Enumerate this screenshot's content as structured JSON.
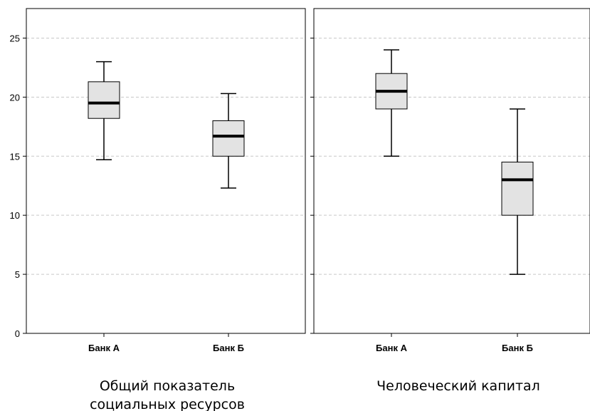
{
  "chart_data": [
    {
      "type": "box",
      "title_lines": [
        "Общий показатель",
        "социальных ресурсов"
      ],
      "categories": [
        "Банк А",
        "Банк Б"
      ],
      "boxes": [
        {
          "category": "Банк А",
          "min": 14.7,
          "q1": 18.2,
          "median": 19.5,
          "q3": 21.3,
          "max": 23.0
        },
        {
          "category": "Банк Б",
          "min": 12.3,
          "q1": 15.0,
          "median": 16.7,
          "q3": 18.0,
          "max": 20.3
        }
      ],
      "ylim": [
        0,
        27.5
      ],
      "yticks": [
        0,
        5,
        10,
        15,
        20,
        25
      ],
      "grid": true,
      "box_fill": "#e3e3e3"
    },
    {
      "type": "box",
      "title_lines": [
        "Человеческий капитал"
      ],
      "categories": [
        "Банк А",
        "Банк Б"
      ],
      "boxes": [
        {
          "category": "Банк А",
          "min": 15.0,
          "q1": 19.0,
          "median": 20.5,
          "q3": 22.0,
          "max": 24.0
        },
        {
          "category": "Банк Б",
          "min": 5.0,
          "q1": 10.0,
          "median": 13.0,
          "q3": 14.5,
          "max": 19.0
        }
      ],
      "ylim": [
        0,
        27.5
      ],
      "yticks": [
        0,
        5,
        10,
        15,
        20,
        25
      ],
      "grid": true,
      "box_fill": "#e3e3e3"
    }
  ]
}
